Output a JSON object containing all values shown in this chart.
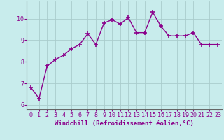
{
  "x": [
    0,
    1,
    2,
    3,
    4,
    5,
    6,
    7,
    8,
    9,
    10,
    11,
    12,
    13,
    14,
    15,
    16,
    17,
    18,
    19,
    20,
    21,
    22,
    23
  ],
  "y": [
    6.8,
    6.3,
    7.8,
    8.1,
    8.3,
    8.6,
    8.8,
    9.3,
    8.8,
    9.8,
    9.95,
    9.75,
    10.05,
    9.35,
    9.35,
    10.3,
    9.65,
    9.2,
    9.2,
    9.2,
    9.35,
    8.8,
    8.8,
    8.8
  ],
  "line_color": "#8b008b",
  "marker": "+",
  "marker_size": 5,
  "linewidth": 1.0,
  "bg_color": "#c8ecec",
  "grid_color": "#aacccc",
  "xlabel": "Windchill (Refroidissement éolien,°C)",
  "xlabel_color": "#8b008b",
  "xlabel_fontsize": 6.5,
  "tick_color": "#8b008b",
  "tick_fontsize": 6,
  "ylim": [
    5.8,
    10.8
  ],
  "yticks": [
    6,
    7,
    8,
    9,
    10
  ],
  "xlim": [
    -0.5,
    23.5
  ]
}
